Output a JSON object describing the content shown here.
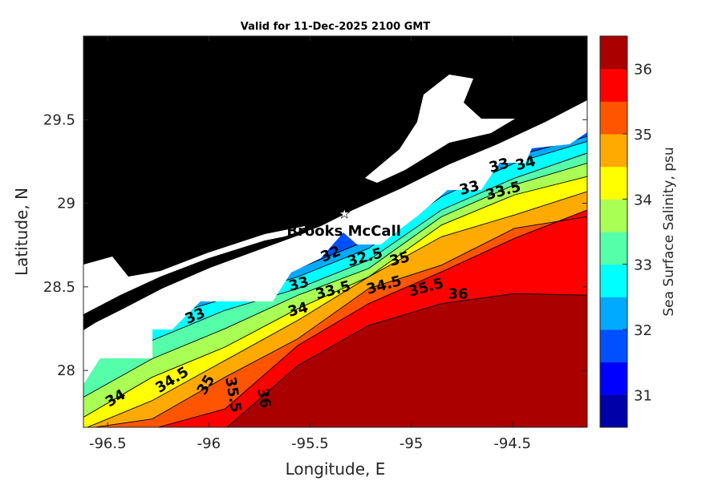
{
  "chart_data": {
    "type": "heatmap",
    "subtype": "filled-contour-map",
    "title": "Valid for 11-Dec-2025 2100 GMT",
    "xlabel": "Longitude, E",
    "ylabel": "Latitude, N",
    "colorbar_label": "Sea Surface Salinity, psu",
    "xlim": [
      -96.62,
      -94.13
    ],
    "ylim": [
      27.66,
      30.0
    ],
    "xticks": [
      "-96.5",
      "-96",
      "-95.5",
      "-95",
      "-94.5"
    ],
    "xtick_values": [
      -96.5,
      -96,
      -95.5,
      -95,
      -94.5
    ],
    "yticks": [
      "28",
      "28.5",
      "29",
      "29.5"
    ],
    "ytick_values": [
      28,
      28.5,
      29,
      29.5
    ],
    "colorbar": {
      "range": [
        30.5,
        36.5
      ],
      "ticks": [
        "31",
        "32",
        "33",
        "34",
        "35",
        "36"
      ],
      "tick_values": [
        31,
        32,
        33,
        34,
        35,
        36
      ],
      "band_colors": [
        "#0000a8",
        "#0000ff",
        "#0050ff",
        "#00aaff",
        "#00ffff",
        "#55ffaa",
        "#aaff55",
        "#ffff00",
        "#ffaa00",
        "#ff5500",
        "#ff0000",
        "#aa0000"
      ]
    },
    "base_color": "#0050ff",
    "contour_lon_grid": [
      -96.62,
      -96.28,
      -95.92,
      -95.56,
      -95.21,
      -94.85,
      -94.49,
      -94.13
    ],
    "contours": [
      {
        "level": 32,
        "fill_above": "#00aaff",
        "lat": [
          28.35,
          28.35,
          28.47,
          28.61,
          28.78,
          29.08,
          29.28,
          29.4
        ]
      },
      {
        "level": 32.5,
        "fill_above": "#00ffff",
        "lat": [
          28.3,
          28.3,
          28.43,
          28.56,
          28.73,
          29.04,
          29.24,
          29.37
        ]
      },
      {
        "level": 33,
        "fill_above": "#55ffaa",
        "lat": [
          28.11,
          28.18,
          28.36,
          28.49,
          28.66,
          28.96,
          29.15,
          29.3
        ]
      },
      {
        "level": 33.5,
        "fill_above": "#aaff55",
        "lat": [
          27.84,
          28.07,
          28.25,
          28.45,
          28.61,
          28.92,
          29.11,
          29.24
        ]
      },
      {
        "level": 34,
        "fill_above": "#ffff00",
        "lat": [
          27.72,
          27.96,
          28.14,
          28.37,
          28.56,
          28.87,
          29.05,
          29.16
        ]
      },
      {
        "level": 34.5,
        "fill_above": "#ffaa00",
        "lat": [
          27.6,
          27.82,
          28.06,
          28.3,
          28.56,
          28.8,
          28.93,
          29.07
        ]
      },
      {
        "level": 35,
        "fill_above": "#ff5500",
        "lat": [
          27.48,
          27.71,
          27.96,
          28.19,
          28.49,
          28.63,
          28.85,
          28.92
        ]
      },
      {
        "level": 35.5,
        "fill_above": "#ff0000",
        "lat": [
          27.34,
          27.43,
          27.77,
          28.15,
          28.4,
          28.59,
          28.79,
          28.96
        ]
      },
      {
        "level": 36,
        "fill_above": "#aa0000",
        "lat": [
          27.1,
          27.34,
          27.53,
          28.03,
          28.27,
          28.4,
          28.46,
          28.45
        ]
      }
    ],
    "contour_labels": [
      {
        "text": "33",
        "lon": -96.06,
        "lat": 28.3,
        "angle": -22
      },
      {
        "text": "34",
        "lon": -96.45,
        "lat": 27.81,
        "angle": -30
      },
      {
        "text": "34.5",
        "lon": -96.17,
        "lat": 27.92,
        "angle": -32
      },
      {
        "text": "35",
        "lon": -96.09,
        "lat": 27.9,
        "angle": -60
      },
      {
        "text": "35.5",
        "lon": -95.95,
        "lat": 27.85,
        "angle": 80
      },
      {
        "text": "36",
        "lon": -95.75,
        "lat": 27.83,
        "angle": 80
      },
      {
        "text": "32",
        "lon": -95.39,
        "lat": 28.67,
        "angle": -22
      },
      {
        "text": "32.5",
        "lon": -95.27,
        "lat": 28.65,
        "angle": -15
      },
      {
        "text": "33",
        "lon": -95.55,
        "lat": 28.49,
        "angle": -15
      },
      {
        "text": "33.5",
        "lon": -95.49,
        "lat": 28.53,
        "angle": -15
      },
      {
        "text": "34",
        "lon": -95.49,
        "lat": 28.47,
        "angle": -15
      },
      {
        "text": "34.5",
        "lon": -95.16,
        "lat": 28.55,
        "angle": -15
      },
      {
        "text": "35",
        "lon": -95.08,
        "lat": 28.51,
        "angle": -15
      },
      {
        "text": "35.5",
        "lon": -95.0,
        "lat": 28.47,
        "angle": -15
      },
      {
        "text": "36",
        "lon": -94.8,
        "lat": 28.43,
        "angle": 0
      },
      {
        "text": "33",
        "lon": -94.56,
        "lat": 29.2,
        "angle": -15
      },
      {
        "text": "33.5",
        "lon": -94.56,
        "lat": 29.14,
        "angle": -15
      },
      {
        "text": "34",
        "lon": -94.53,
        "lat": 29.09,
        "angle": -15
      },
      {
        "text": "33",
        "lon": -94.63,
        "lat": 29.09,
        "angle": -15
      }
    ],
    "station": {
      "name": "Brooks McCall",
      "lon": -95.33,
      "lat": 28.94,
      "marker": "star"
    }
  }
}
